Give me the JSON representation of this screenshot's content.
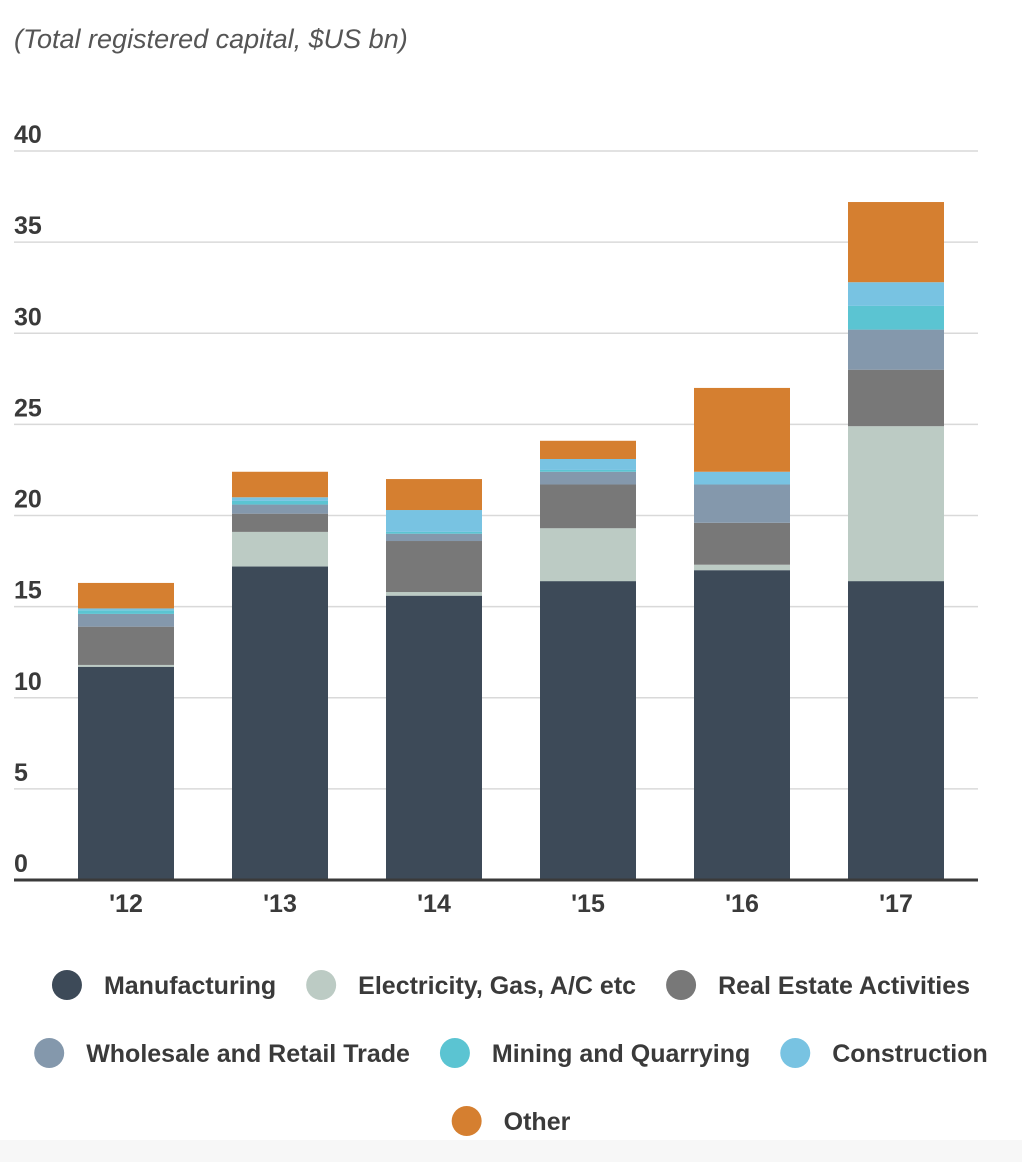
{
  "chart_data": {
    "type": "bar",
    "stacked": true,
    "subtitle": "(Total registered capital, $US bn)",
    "xlabel": "",
    "ylabel": "",
    "categories": [
      "'12",
      "'13",
      "'14",
      "'15",
      "'16",
      "'17"
    ],
    "ylim": [
      0,
      40
    ],
    "yticks": [
      0,
      5,
      10,
      15,
      20,
      25,
      30,
      35,
      40
    ],
    "grid": true,
    "legend_position": "bottom",
    "series": [
      {
        "name": "Manufacturing",
        "color": "#3d4a58",
        "values": [
          11.7,
          17.2,
          15.6,
          16.4,
          17.0,
          16.4
        ]
      },
      {
        "name": "Electricity, Gas, A/C etc",
        "color": "#bccbc4",
        "values": [
          0.1,
          1.9,
          0.2,
          2.9,
          0.3,
          8.5
        ]
      },
      {
        "name": "Real Estate Activities",
        "color": "#787878",
        "values": [
          2.1,
          1.0,
          2.8,
          2.4,
          2.3,
          3.1
        ]
      },
      {
        "name": "Wholesale and Retail Trade",
        "color": "#8498ac",
        "values": [
          0.7,
          0.5,
          0.4,
          0.7,
          2.1,
          2.2
        ]
      },
      {
        "name": "Mining and Quarrying",
        "color": "#5bc4d2",
        "values": [
          0.2,
          0.2,
          0.1,
          0.1,
          0.0,
          1.3
        ]
      },
      {
        "name": "Construction",
        "color": "#78c3e2",
        "values": [
          0.1,
          0.2,
          1.2,
          0.6,
          0.7,
          1.3
        ]
      },
      {
        "name": "Other",
        "color": "#d57f30",
        "values": [
          1.4,
          1.4,
          1.7,
          1.0,
          4.6,
          4.4
        ]
      }
    ]
  }
}
